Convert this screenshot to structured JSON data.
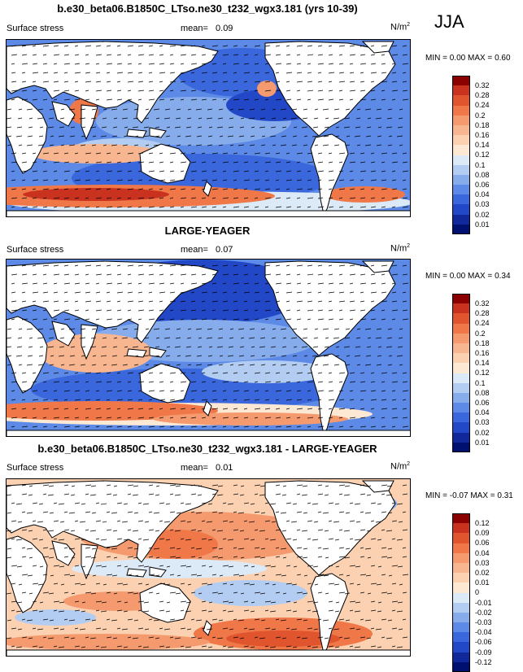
{
  "season": "JJA",
  "panels": [
    {
      "title": "b.e30_beta06.B1850C_LTso.ne30_t232_wgx3.181 (yrs 10-39)",
      "variable": "Surface stress",
      "mean_label": "mean=",
      "mean": "0.09",
      "units": "N/m",
      "units_exp": "2",
      "min_label": "MIN =",
      "min": "0.00",
      "max_label": "MAX =",
      "max": "0.60",
      "scheme": "full",
      "colorbar": {
        "labels": [
          "0.32",
          "0.28",
          "0.24",
          "0.2",
          "0.18",
          "0.16",
          "0.14",
          "0.12",
          "0.1",
          "0.08",
          "0.06",
          "0.04",
          "0.03",
          "0.02",
          "0.01"
        ],
        "colors": [
          "#8b0000",
          "#c8321e",
          "#e0542e",
          "#f07848",
          "#f59a6e",
          "#f8b690",
          "#fbd1b2",
          "#fde8d3",
          "#dceaf8",
          "#b3cdf2",
          "#86acec",
          "#5c8ae6",
          "#3a68dc",
          "#2248c8",
          "#10289a",
          "#001070"
        ]
      }
    },
    {
      "title": "LARGE-YEAGER",
      "variable": "Surface stress",
      "mean_label": "mean=",
      "mean": "0.07",
      "units": "N/m",
      "units_exp": "2",
      "min_label": "MIN =",
      "min": "0.00",
      "max_label": "MAX =",
      "max": "0.34",
      "scheme": "full",
      "colorbar": {
        "labels": [
          "0.32",
          "0.28",
          "0.24",
          "0.2",
          "0.18",
          "0.16",
          "0.14",
          "0.12",
          "0.1",
          "0.08",
          "0.06",
          "0.04",
          "0.03",
          "0.02",
          "0.01"
        ],
        "colors": [
          "#8b0000",
          "#c8321e",
          "#e0542e",
          "#f07848",
          "#f59a6e",
          "#f8b690",
          "#fbd1b2",
          "#fde8d3",
          "#dceaf8",
          "#b3cdf2",
          "#86acec",
          "#5c8ae6",
          "#3a68dc",
          "#2248c8",
          "#10289a",
          "#001070"
        ]
      }
    },
    {
      "title": "b.e30_beta06.B1850C_LTso.ne30_t232_wgx3.181 - LARGE-YEAGER",
      "variable": "Surface stress",
      "mean_label": "mean=",
      "mean": "0.01",
      "units": "N/m",
      "units_exp": "2",
      "min_label": "MIN =",
      "min": "-0.07",
      "max_label": "MAX =",
      "max": "0.31",
      "scheme": "diff",
      "colorbar": {
        "labels": [
          "0.12",
          "0.09",
          "0.06",
          "0.04",
          "0.03",
          "0.02",
          "0.01",
          "0",
          "-0.01",
          "-0.02",
          "-0.03",
          "-0.04",
          "-0.06",
          "-0.09",
          "-0.12"
        ],
        "colors": [
          "#8b0000",
          "#c8321e",
          "#e0542e",
          "#f07848",
          "#f59a6e",
          "#f8b690",
          "#fbd1b2",
          "#fde8d3",
          "#dceaf8",
          "#b3cdf2",
          "#86acec",
          "#5c8ae6",
          "#3a68dc",
          "#2248c8",
          "#10289a",
          "#001070"
        ]
      }
    }
  ]
}
